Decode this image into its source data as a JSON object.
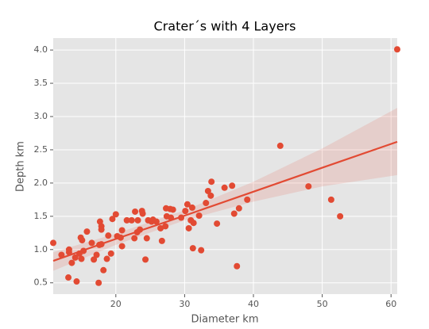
{
  "chart_data": {
    "type": "scatter",
    "title": "Crater´s with 4 Layers",
    "xlabel": "Diameter km",
    "ylabel": "Depth km",
    "color": "#e24a33",
    "grid": true,
    "x": [
      10.9,
      12.1,
      13.2,
      13.2,
      13.1,
      13.6,
      14.1,
      14.3,
      14.7,
      14.9,
      15.0,
      15.1,
      15.3,
      15.8,
      16.5,
      16.8,
      17.2,
      17.5,
      17.6,
      17.7,
      17.9,
      17.9,
      17.9,
      18.2,
      18.7,
      18.9,
      19.3,
      19.5,
      20.0,
      20.2,
      20.7,
      20.9,
      20.9,
      21.6,
      22.3,
      22.7,
      22.8,
      23.1,
      23.2,
      23.5,
      23.8,
      23.9,
      24.3,
      24.5,
      24.7,
      25.2,
      25.4,
      25.9,
      26.5,
      26.7,
      27.2,
      27.3,
      27.4,
      27.9,
      28.3,
      28.0,
      29.5,
      30.1,
      30.4,
      30.6,
      30.9,
      31.1,
      31.2,
      31.3,
      32.1,
      32.4,
      33.1,
      33.4,
      33.9,
      33.8,
      34.7,
      35.8,
      36.9,
      37.2,
      37.6,
      37.9,
      39.1,
      43.9,
      48.0,
      51.3,
      52.6,
      60.9
    ],
    "values": [
      1.1,
      0.92,
      0.96,
      1.0,
      0.58,
      0.8,
      0.88,
      0.52,
      0.94,
      1.18,
      0.86,
      1.14,
      0.98,
      1.27,
      1.1,
      0.85,
      0.92,
      0.5,
      1.07,
      1.42,
      1.08,
      1.35,
      1.3,
      0.69,
      0.86,
      1.21,
      0.94,
      1.46,
      1.53,
      1.2,
      1.18,
      1.05,
      1.29,
      1.44,
      1.44,
      1.17,
      1.57,
      1.26,
      1.44,
      1.3,
      1.58,
      1.54,
      0.85,
      1.17,
      1.44,
      1.42,
      1.45,
      1.42,
      1.32,
      1.13,
      1.35,
      1.62,
      1.5,
      1.61,
      1.6,
      1.48,
      1.48,
      1.58,
      1.68,
      1.32,
      1.44,
      1.63,
      1.02,
      1.4,
      1.51,
      0.99,
      1.7,
      1.88,
      2.02,
      1.81,
      1.39,
      1.93,
      1.96,
      1.54,
      0.75,
      1.62,
      1.75,
      2.56,
      1.95,
      1.75,
      1.5,
      4.01
    ],
    "fit": {
      "x": [
        10.9,
        20,
        30,
        40,
        50,
        60.9
      ],
      "y": [
        0.83,
        1.16,
        1.51,
        1.87,
        2.23,
        2.62
      ],
      "lower": [
        0.68,
        1.07,
        1.44,
        1.72,
        1.95,
        2.12
      ],
      "upper": [
        0.96,
        1.24,
        1.59,
        2.02,
        2.52,
        3.13
      ]
    },
    "xlim": [
      10.9,
      60.9
    ],
    "ylim": [
      0.33,
      4.18
    ],
    "xticks": [
      20,
      30,
      40,
      50,
      60
    ],
    "yticks": [
      0.5,
      {
        "value": 1.0,
        "label": "1.0"
      },
      1.5,
      {
        "value": 2.0,
        "label": "2.0"
      },
      2.5,
      {
        "value": 3.0,
        "label": "3.0"
      },
      3.5,
      {
        "value": 4.0,
        "label": "4.0"
      }
    ]
  }
}
